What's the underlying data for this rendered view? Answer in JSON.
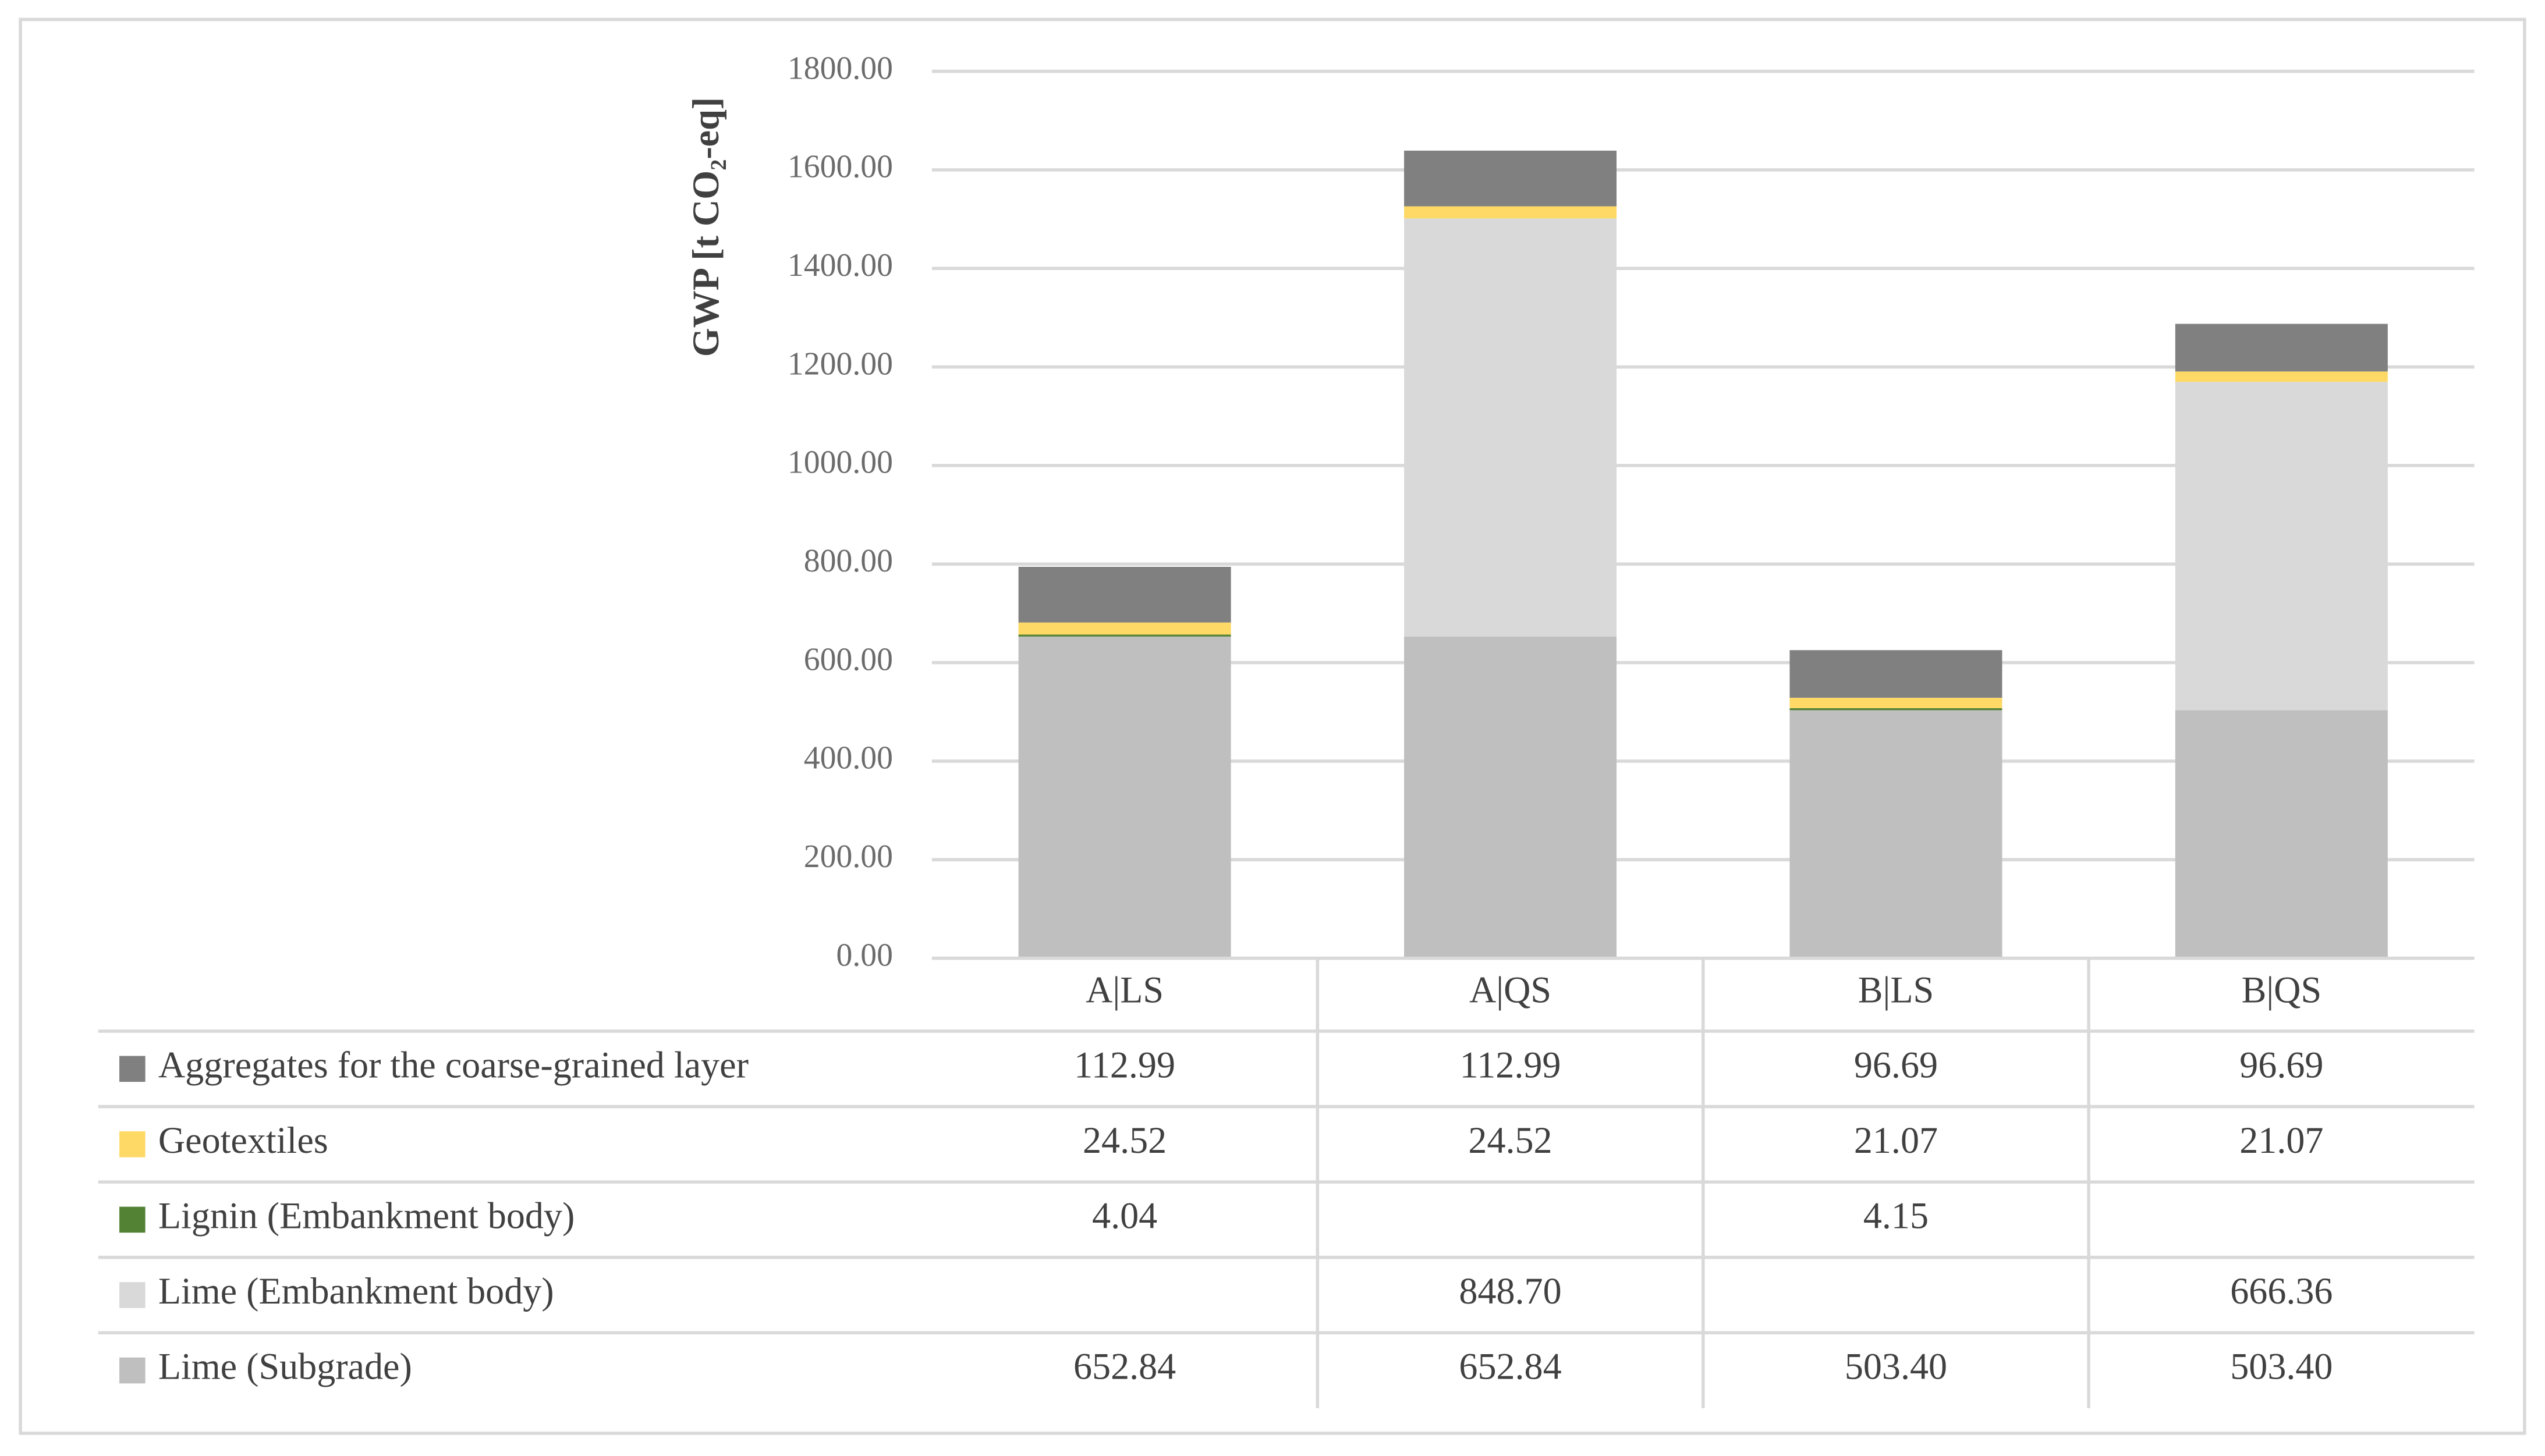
{
  "chart_data": {
    "type": "bar",
    "stacked": true,
    "y_label": "GWP [t CO₂-eq]",
    "categories": [
      "A|LS",
      "A|QS",
      "B|LS",
      "B|QS"
    ],
    "series": [
      {
        "name": "Aggregates for the coarse-grained layer",
        "color": "#808080",
        "values": [
          112.99,
          112.99,
          96.69,
          96.69
        ]
      },
      {
        "name": "Geotextiles",
        "color": "#ffd966",
        "values": [
          24.52,
          24.52,
          21.07,
          21.07
        ]
      },
      {
        "name": "Lignin (Embankment body)",
        "color": "#548235",
        "values": [
          4.04,
          null,
          4.15,
          null
        ]
      },
      {
        "name": "Lime (Embankment body)",
        "color": "#d9d9d9",
        "values": [
          null,
          848.7,
          null,
          666.36
        ],
        "value_labels": [
          null,
          "848.70",
          null,
          "666.36"
        ]
      },
      {
        "name": "Lime (Subgrade)",
        "color": "#bfbfbf",
        "values": [
          652.84,
          652.84,
          503.4,
          503.4
        ],
        "value_labels": [
          "652.84",
          "652.84",
          "503.40",
          "503.40"
        ]
      }
    ],
    "ylim": [
      0,
      1800
    ],
    "yticks": [
      {
        "value": 0,
        "label": "0.00"
      },
      {
        "value": 200,
        "label": "200.00"
      },
      {
        "value": 400,
        "label": "400.00"
      },
      {
        "value": 600,
        "label": "600.00"
      },
      {
        "value": 800,
        "label": "800.00"
      },
      {
        "value": 1000,
        "label": "1000.00"
      },
      {
        "value": 1200,
        "label": "1200.00"
      },
      {
        "value": 1400,
        "label": "1400.00"
      },
      {
        "value": 1600,
        "label": "1600.00"
      },
      {
        "value": 1800,
        "label": "1800.00"
      }
    ],
    "grid": true
  }
}
